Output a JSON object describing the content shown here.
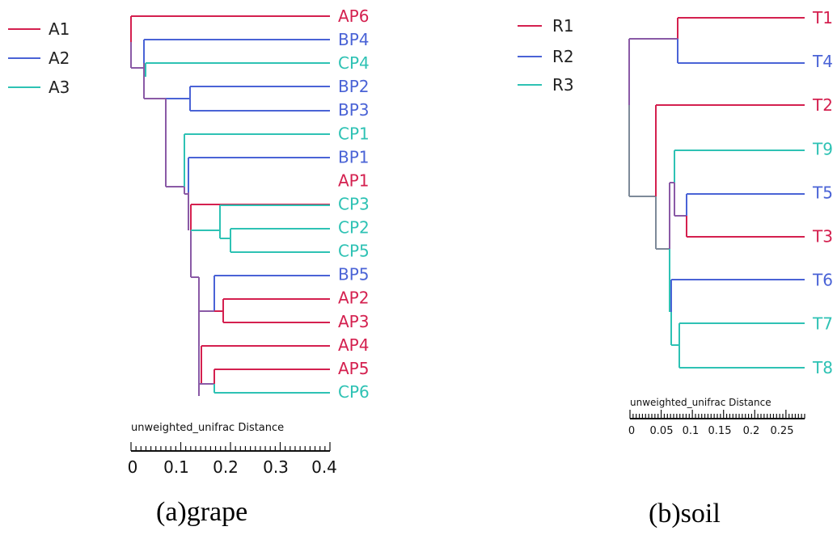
{
  "colors": {
    "red": "#d4204f",
    "blue": "#4a63d6",
    "teal": "#2ec2b4",
    "mix": "#8a5aa6",
    "gray": "#7d8a99"
  },
  "grape": {
    "caption": "(a)grape",
    "legend": [
      {
        "label": "A1",
        "color": "red"
      },
      {
        "label": "A2",
        "color": "blue"
      },
      {
        "label": "A3",
        "color": "teal"
      }
    ],
    "axis_title": "unweighted_unifrac Distance",
    "ticks": [
      "0",
      "0.1",
      "0.2",
      "0.3",
      "0.4"
    ],
    "leaves": [
      {
        "label": "AP6",
        "color": "red"
      },
      {
        "label": "BP4",
        "color": "blue"
      },
      {
        "label": "CP4",
        "color": "teal"
      },
      {
        "label": "BP2",
        "color": "blue"
      },
      {
        "label": "BP3",
        "color": "blue"
      },
      {
        "label": "CP1",
        "color": "teal"
      },
      {
        "label": "BP1",
        "color": "blue"
      },
      {
        "label": "AP1",
        "color": "red"
      },
      {
        "label": "CP3",
        "color": "teal"
      },
      {
        "label": "CP2",
        "color": "teal"
      },
      {
        "label": "CP5",
        "color": "teal"
      },
      {
        "label": "BP5",
        "color": "blue"
      },
      {
        "label": "AP2",
        "color": "red"
      },
      {
        "label": "AP3",
        "color": "red"
      },
      {
        "label": "AP4",
        "color": "red"
      },
      {
        "label": "AP5",
        "color": "red"
      },
      {
        "label": "CP6",
        "color": "teal"
      }
    ]
  },
  "soil": {
    "caption": "(b)soil",
    "legend": [
      {
        "label": "R1",
        "color": "red"
      },
      {
        "label": "R2",
        "color": "blue"
      },
      {
        "label": "R3",
        "color": "teal"
      }
    ],
    "axis_title": "unweighted_unifrac Distance",
    "ticks": [
      "0",
      "0.05",
      "0.1",
      "0.15",
      "0.2",
      "0.25"
    ],
    "leaves": [
      {
        "label": "T1",
        "color": "red"
      },
      {
        "label": "T4",
        "color": "blue"
      },
      {
        "label": "T2",
        "color": "red"
      },
      {
        "label": "T9",
        "color": "teal"
      },
      {
        "label": "T5",
        "color": "blue"
      },
      {
        "label": "T3",
        "color": "red"
      },
      {
        "label": "T6",
        "color": "blue"
      },
      {
        "label": "T7",
        "color": "teal"
      },
      {
        "label": "T8",
        "color": "teal"
      }
    ]
  }
}
